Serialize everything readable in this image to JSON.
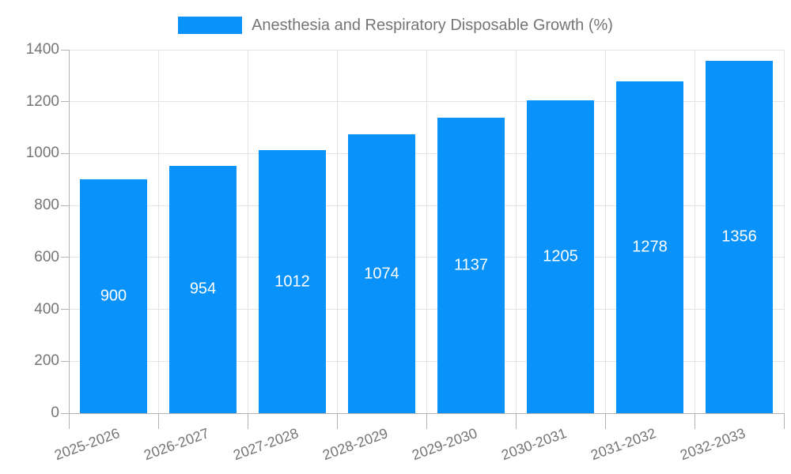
{
  "chart_data": {
    "type": "bar",
    "title": "Anesthesia and Respiratory Disposable Growth (%)",
    "categories": [
      "2025-2026",
      "2026-2027",
      "2027-2028",
      "2028-2029",
      "2029-2030",
      "2030-2031",
      "2031-2032",
      "2032-2033"
    ],
    "values": [
      900,
      954,
      1012,
      1074,
      1137,
      1205,
      1278,
      1356
    ],
    "xlabel": "",
    "ylabel": "",
    "ylim": [
      0,
      1400
    ],
    "yticks": [
      0,
      200,
      400,
      600,
      800,
      1000,
      1200,
      1400
    ],
    "grid": true,
    "legend_position": "top-center",
    "value_labels": "inside-center",
    "x_label_rotation_deg": -20,
    "colors": {
      "bar": "#0892fa",
      "value_label": "#ffffff",
      "axis_text": "#757575",
      "gridline": "#e4e4e4",
      "axis_line": "#b3b3b3",
      "background": "#ffffff"
    }
  }
}
